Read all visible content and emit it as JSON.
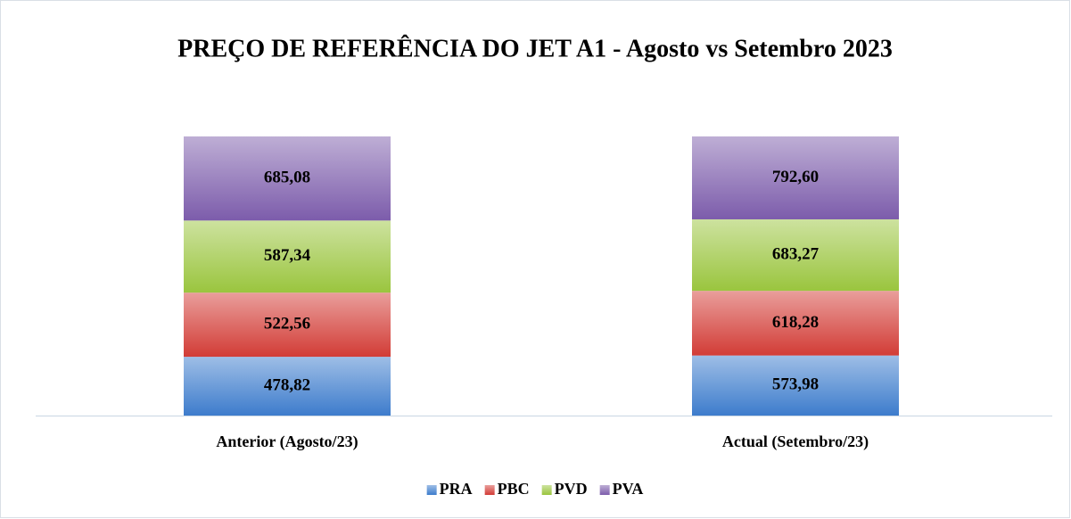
{
  "chart_data": {
    "type": "bar",
    "stacked": "percent",
    "title": "PREÇO DE REFERÊNCIA DO JET A1 - Agosto vs Setembro 2023",
    "categories": [
      "Anterior (Agosto/23)",
      "Actual (Setembro/23)"
    ],
    "series": [
      {
        "name": "PRA",
        "color": "#3d7ccc",
        "values": [
          478.82,
          573.98
        ],
        "value_labels": [
          "478,82",
          "573,98"
        ]
      },
      {
        "name": "PBC",
        "color": "#d23c36",
        "values": [
          522.56,
          618.28
        ],
        "value_labels": [
          "522,56",
          "618,28"
        ]
      },
      {
        "name": "PVD",
        "color": "#9ac53e",
        "values": [
          587.34,
          683.27
        ],
        "value_labels": [
          "587,34",
          "683,27"
        ]
      },
      {
        "name": "PVA",
        "color": "#7c5cab",
        "values": [
          685.08,
          792.6
        ],
        "value_labels": [
          "685,08",
          "792,60"
        ]
      }
    ],
    "legend": "bottom"
  }
}
